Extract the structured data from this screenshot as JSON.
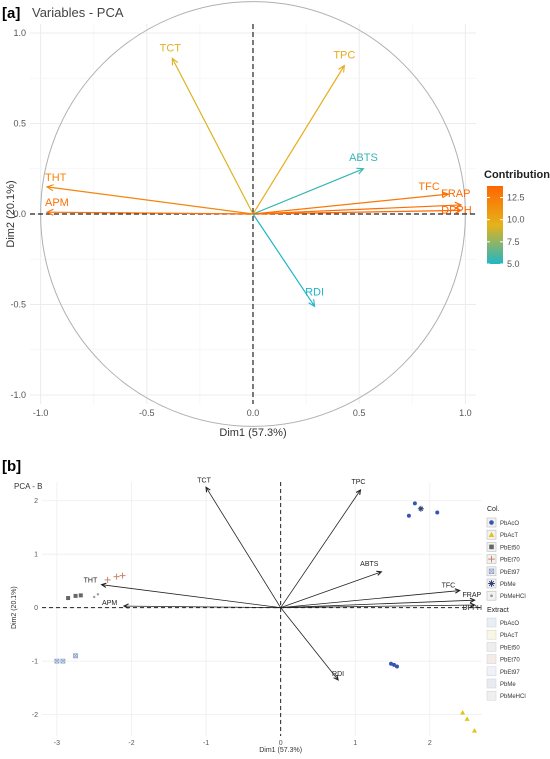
{
  "chart_data": [
    {
      "panel_label": "[a]",
      "type": "scatter",
      "title": "Variables - PCA",
      "xlabel": "Dim1 (57.3%)",
      "ylabel": "Dim2 (20.1%)",
      "xlim": [
        -1.05,
        1.05
      ],
      "ylim": [
        -1.05,
        1.05
      ],
      "x_ticks": [
        -1.0,
        -0.5,
        0.0,
        0.5,
        1.0
      ],
      "y_ticks": [
        -1.0,
        -0.5,
        0.0,
        0.5,
        1.0
      ],
      "x_tick_labels": [
        "-1.0",
        "-0.5",
        "0.0",
        "0.5",
        "1.0"
      ],
      "y_tick_labels": [
        "-1.0",
        "-0.5",
        "0.0",
        "0.5",
        "1.0"
      ],
      "grid": true,
      "correlation_circle": true,
      "vectors": [
        {
          "label": "TCT",
          "x": -0.38,
          "y": 0.86,
          "contribution": 9.2
        },
        {
          "label": "TPC",
          "x": 0.43,
          "y": 0.82,
          "contribution": 9.8
        },
        {
          "label": "ABTS",
          "x": 0.52,
          "y": 0.25,
          "contribution": 5.5
        },
        {
          "label": "THT",
          "x": -0.97,
          "y": 0.15,
          "contribution": 12.0
        },
        {
          "label": "APM",
          "x": -0.97,
          "y": 0.01,
          "contribution": 13.2
        },
        {
          "label": "TFC",
          "x": 0.92,
          "y": 0.11,
          "contribution": 12.8
        },
        {
          "label": "FRAP",
          "x": 0.98,
          "y": 0.05,
          "contribution": 13.5
        },
        {
          "label": "DPPH",
          "x": 0.98,
          "y": 0.02,
          "contribution": 13.6
        },
        {
          "label": "RDI",
          "x": 0.29,
          "y": -0.51,
          "contribution": 5.0
        }
      ],
      "legend": {
        "title": "Contribution",
        "position": "right",
        "ticks": [
          "12.5",
          "10.0",
          "7.5",
          "5.0"
        ],
        "tick_values": [
          12.5,
          10.0,
          7.5,
          5.0
        ],
        "range": [
          5.0,
          13.8
        ],
        "colors": [
          "#21b6c6",
          "#e6b21a",
          "#ff6600"
        ]
      }
    },
    {
      "panel_label": "[b]",
      "type": "scatter",
      "title": "PCA - Biplot",
      "xlabel": "Dim1 (57.3%)",
      "ylabel": "Dim2 (20.1%)",
      "xlim": [
        -3.2,
        2.7
      ],
      "ylim": [
        -2.4,
        2.35
      ],
      "x_ticks": [
        -3,
        -2,
        -1,
        0,
        1,
        2
      ],
      "y_ticks": [
        -2,
        -1,
        0,
        1,
        2
      ],
      "x_tick_labels": [
        "-3",
        "-2",
        "-1",
        "0",
        "1",
        "2"
      ],
      "y_tick_labels": [
        "-2",
        "-1",
        "0",
        "1",
        "2"
      ],
      "grid": true,
      "vectors": [
        {
          "label": "TCT",
          "x": -1.0,
          "y": 2.25
        },
        {
          "label": "TPC",
          "x": 1.07,
          "y": 2.2
        },
        {
          "label": "ABTS",
          "x": 1.35,
          "y": 0.67
        },
        {
          "label": "THT",
          "x": -2.4,
          "y": 0.43
        },
        {
          "label": "APM",
          "x": -2.1,
          "y": 0.03
        },
        {
          "label": "TFC",
          "x": 2.4,
          "y": 0.32
        },
        {
          "label": "FRAP",
          "x": 2.6,
          "y": 0.14
        },
        {
          "label": "DPPH",
          "x": 2.6,
          "y": 0.05
        },
        {
          "label": "RDI",
          "x": 0.77,
          "y": -1.35
        }
      ],
      "points": [
        {
          "group": "PbAcO",
          "x": 1.8,
          "y": 1.95
        },
        {
          "group": "PbAcO",
          "x": 1.72,
          "y": 1.72
        },
        {
          "group": "PbAcO",
          "x": 2.1,
          "y": 1.78
        },
        {
          "group": "PbMe",
          "x": 1.88,
          "y": 1.85
        },
        {
          "group": "PbAcO",
          "x": 1.52,
          "y": -1.07
        },
        {
          "group": "PbAcO",
          "x": 1.56,
          "y": -1.1
        },
        {
          "group": "PbAcO",
          "x": 1.48,
          "y": -1.05
        },
        {
          "group": "PbAcT",
          "x": 2.5,
          "y": -2.08
        },
        {
          "group": "PbAcT",
          "x": 2.44,
          "y": -1.96
        },
        {
          "group": "PbAcT",
          "x": 2.6,
          "y": -2.3
        },
        {
          "group": "PbEt70",
          "x": -2.2,
          "y": 0.58
        },
        {
          "group": "PbEt70",
          "x": -2.12,
          "y": 0.6
        },
        {
          "group": "PbEt70",
          "x": -2.32,
          "y": 0.52
        },
        {
          "group": "PbEt50",
          "x": -2.75,
          "y": 0.22
        },
        {
          "group": "PbEt50",
          "x": -2.85,
          "y": 0.18
        },
        {
          "group": "PbEt50",
          "x": -2.68,
          "y": 0.23
        },
        {
          "group": "PbEt97",
          "x": -2.92,
          "y": -1.0
        },
        {
          "group": "PbEt97",
          "x": -2.75,
          "y": -0.9
        },
        {
          "group": "PbEt97",
          "x": -3.0,
          "y": -1.0
        },
        {
          "group": "PbMeHCl",
          "x": -2.5,
          "y": 0.2
        },
        {
          "group": "PbMeHCl",
          "x": -2.45,
          "y": 0.25
        }
      ],
      "legend_col": {
        "title": "Col.",
        "position": "right",
        "entries": [
          {
            "label": "PbAcO",
            "color": "#3556b0",
            "shape": "circle"
          },
          {
            "label": "PbAcT",
            "color": "#e0c418",
            "shape": "triangle"
          },
          {
            "label": "PbEt50",
            "color": "#666666",
            "shape": "square"
          },
          {
            "label": "PbEt70",
            "color": "#c9866a",
            "shape": "plus"
          },
          {
            "label": "PbEt97",
            "color": "#8aa0c8",
            "shape": "box-x"
          },
          {
            "label": "PbMe",
            "color": "#2b3f7a",
            "shape": "asterisk"
          },
          {
            "label": "PbMeHCl",
            "color": "#9a9a9a",
            "shape": "empty"
          }
        ]
      },
      "legend_extract": {
        "title": "Extract",
        "position": "right",
        "entries": [
          "PbAcO",
          "PbAcT",
          "PbEt50",
          "PbEt70",
          "PbEt97",
          "PbMe",
          "PbMeHCl"
        ],
        "colors": [
          "#e9edf5",
          "#f7f7e2",
          "#eeeeee",
          "#f4ebe7",
          "#eef1f7",
          "#e8ebf2",
          "#efefef"
        ]
      }
    }
  ]
}
